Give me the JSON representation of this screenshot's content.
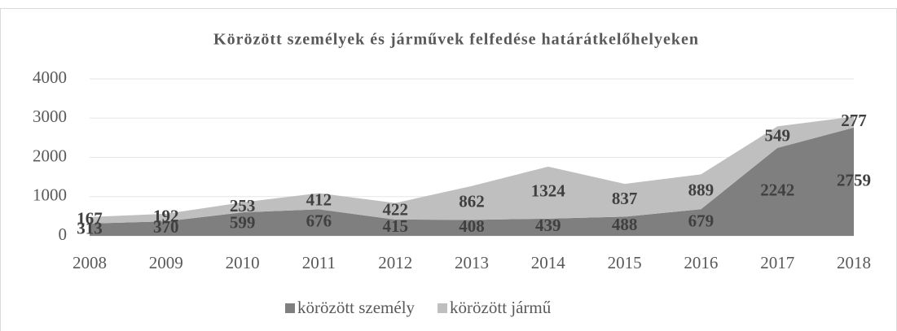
{
  "chart_data": {
    "type": "stacked_area",
    "title": "Körözött személyek és járművek felfedése határátkelőhelyeken",
    "categories": [
      "2008",
      "2009",
      "2010",
      "2011",
      "2012",
      "2013",
      "2014",
      "2015",
      "2016",
      "2017",
      "2018"
    ],
    "series": [
      {
        "name": "körözött személy",
        "color": "#7f7f7f",
        "values": [
          313,
          370,
          599,
          676,
          415,
          408,
          439,
          488,
          679,
          2242,
          2759
        ]
      },
      {
        "name": "körözött jármű",
        "color": "#bfbfbf",
        "values": [
          167,
          192,
          253,
          412,
          422,
          862,
          1324,
          837,
          889,
          549,
          277
        ]
      }
    ],
    "ylim": [
      0,
      4000
    ],
    "yticks": [
      0,
      1000,
      2000,
      3000,
      4000
    ],
    "grid": true,
    "legend": "bottom"
  }
}
